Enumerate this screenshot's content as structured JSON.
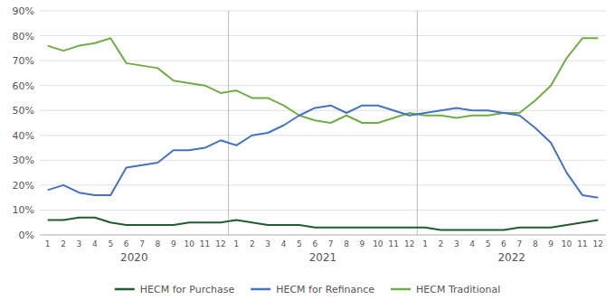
{
  "chart_data": {
    "type": "line",
    "categories": [
      "1",
      "2",
      "3",
      "4",
      "5",
      "6",
      "7",
      "8",
      "9",
      "10",
      "11",
      "12",
      "1",
      "2",
      "3",
      "4",
      "5",
      "6",
      "7",
      "8",
      "9",
      "10",
      "11",
      "12",
      "1",
      "2",
      "3",
      "4",
      "5",
      "6",
      "7",
      "8",
      "9",
      "10",
      "11",
      "12"
    ],
    "annotations": [
      "2020",
      "2021",
      "2022"
    ],
    "series": [
      {
        "name": "HECM for Purchase",
        "color": "#1f5c2e",
        "values": [
          0.06,
          0.06,
          0.07,
          0.07,
          0.05,
          0.04,
          0.04,
          0.04,
          0.04,
          0.05,
          0.05,
          0.05,
          0.06,
          0.05,
          0.04,
          0.04,
          0.04,
          0.03,
          0.03,
          0.03,
          0.03,
          0.03,
          0.03,
          0.03,
          0.03,
          0.02,
          0.02,
          0.02,
          0.02,
          0.02,
          0.03,
          0.03,
          0.03,
          0.04,
          0.05,
          0.06
        ]
      },
      {
        "name": "HECM for Refinance",
        "color": "#4472c4",
        "values": [
          0.18,
          0.2,
          0.17,
          0.16,
          0.16,
          0.27,
          0.28,
          0.29,
          0.34,
          0.34,
          0.35,
          0.38,
          0.36,
          0.4,
          0.41,
          0.44,
          0.48,
          0.51,
          0.52,
          0.49,
          0.52,
          0.52,
          0.5,
          0.48,
          0.49,
          0.5,
          0.51,
          0.5,
          0.5,
          0.49,
          0.48,
          0.43,
          0.37,
          0.25,
          0.16,
          0.15
        ]
      },
      {
        "name": "HECM Traditional",
        "color": "#70ad47",
        "values": [
          0.76,
          0.74,
          0.76,
          0.77,
          0.79,
          0.69,
          0.68,
          0.67,
          0.62,
          0.61,
          0.6,
          0.57,
          0.58,
          0.55,
          0.55,
          0.52,
          0.48,
          0.46,
          0.45,
          0.48,
          0.45,
          0.45,
          0.47,
          0.49,
          0.48,
          0.48,
          0.47,
          0.48,
          0.48,
          0.49,
          0.49,
          0.54,
          0.6,
          0.71,
          0.79,
          0.79
        ]
      }
    ],
    "ylim": [
      0,
      0.9
    ],
    "yticks": [
      {
        "value": 0.0,
        "label": "0%"
      },
      {
        "value": 0.1,
        "label": "10%"
      },
      {
        "value": 0.2,
        "label": "20%"
      },
      {
        "value": 0.3,
        "label": "30%"
      },
      {
        "value": 0.4,
        "label": "40%"
      },
      {
        "value": 0.5,
        "label": "50%"
      },
      {
        "value": 0.6,
        "label": "60%"
      },
      {
        "value": 0.7,
        "label": "70%"
      },
      {
        "value": 0.8,
        "label": "80%"
      },
      {
        "value": 0.9,
        "label": "90%"
      }
    ],
    "grid": true,
    "legend": "bottom"
  }
}
